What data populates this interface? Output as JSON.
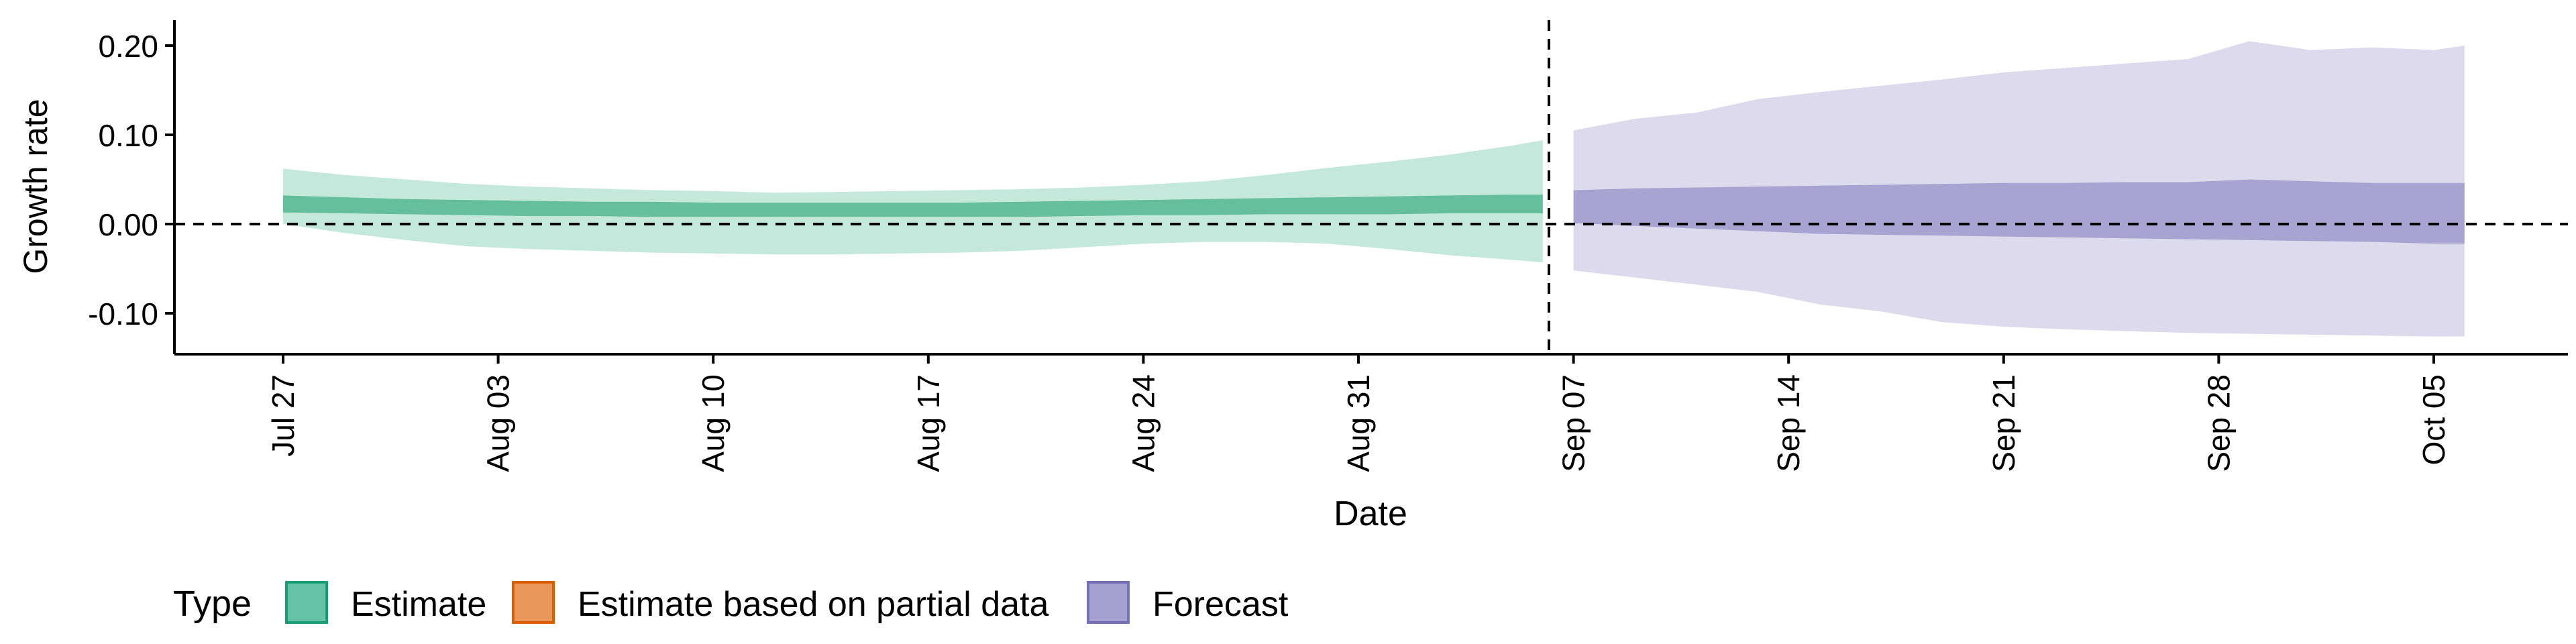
{
  "chart_data": {
    "type": "area",
    "title": "",
    "xlabel": "Date",
    "ylabel": "Growth rate",
    "x_range_days": [
      -3,
      56
    ],
    "ylim": [
      -0.145,
      0.228
    ],
    "y_ticks": [
      {
        "value": 0.2,
        "label": "0.20"
      },
      {
        "value": 0.1,
        "label": "0.10"
      },
      {
        "value": 0.0,
        "label": "0.00"
      },
      {
        "value": -0.1,
        "label": "-0.10"
      }
    ],
    "x_ticks": [
      {
        "day": 0,
        "label": "Jul 27"
      },
      {
        "day": 7,
        "label": "Aug 03"
      },
      {
        "day": 14,
        "label": "Aug 10"
      },
      {
        "day": 21,
        "label": "Aug 17"
      },
      {
        "day": 28,
        "label": "Aug 24"
      },
      {
        "day": 35,
        "label": "Aug 31"
      },
      {
        "day": 42,
        "label": "Sep 07"
      },
      {
        "day": 49,
        "label": "Sep 14"
      },
      {
        "day": 56,
        "label": "Sep 21"
      },
      {
        "day": 63,
        "label": "Sep 28"
      },
      {
        "day": 70,
        "label": "Oct 05"
      }
    ],
    "reference_lines": {
      "horizontal_y": 0.0,
      "vertical_day": 41.2
    },
    "legend": {
      "title": "Type",
      "position": "bottom-left",
      "entries": [
        {
          "label": "Estimate",
          "fill": "#66c2a5",
          "stroke": "#1b9e77"
        },
        {
          "label": "Estimate based on partial data",
          "fill": "#e8965a",
          "stroke": "#d95f02"
        },
        {
          "label": "Forecast",
          "fill": "#a6a0d0",
          "stroke": "#7570b3"
        }
      ]
    },
    "series": [
      {
        "name": "Estimate",
        "outer_fill": "#c5e8dc",
        "inner_fill": "#66bf9c",
        "days": [
          0,
          2,
          4,
          6,
          8,
          10,
          12,
          14,
          16,
          18,
          20,
          22,
          24,
          26,
          28,
          30,
          32,
          34,
          36,
          38,
          40,
          41
        ],
        "outer_low": [
          0.0,
          -0.01,
          -0.018,
          -0.025,
          -0.028,
          -0.03,
          -0.032,
          -0.033,
          -0.034,
          -0.034,
          -0.033,
          -0.032,
          -0.03,
          -0.026,
          -0.022,
          -0.02,
          -0.02,
          -0.022,
          -0.028,
          -0.035,
          -0.04,
          -0.043
        ],
        "outer_high": [
          0.062,
          0.055,
          0.05,
          0.045,
          0.042,
          0.04,
          0.038,
          0.037,
          0.035,
          0.036,
          0.037,
          0.038,
          0.039,
          0.041,
          0.044,
          0.048,
          0.055,
          0.063,
          0.07,
          0.078,
          0.088,
          0.094
        ],
        "inner_low": [
          0.013,
          0.012,
          0.011,
          0.01,
          0.009,
          0.009,
          0.008,
          0.008,
          0.008,
          0.008,
          0.008,
          0.008,
          0.008,
          0.009,
          0.01,
          0.01,
          0.011,
          0.011,
          0.011,
          0.012,
          0.012,
          0.012
        ],
        "inner_high": [
          0.032,
          0.03,
          0.028,
          0.027,
          0.026,
          0.025,
          0.025,
          0.024,
          0.024,
          0.024,
          0.024,
          0.024,
          0.025,
          0.026,
          0.027,
          0.028,
          0.029,
          0.03,
          0.031,
          0.032,
          0.033,
          0.033
        ]
      },
      {
        "name": "Forecast",
        "outer_fill": "#dcdaec",
        "inner_fill": "#a8a3d0",
        "days": [
          42,
          44,
          46,
          48,
          50,
          52,
          54,
          56,
          58,
          60,
          62,
          64,
          66,
          68,
          70,
          71
        ],
        "outer_low": [
          -0.052,
          -0.06,
          -0.068,
          -0.076,
          -0.09,
          -0.098,
          -0.11,
          -0.115,
          -0.118,
          -0.12,
          -0.122,
          -0.123,
          -0.124,
          -0.125,
          -0.126,
          -0.126
        ],
        "outer_high": [
          0.105,
          0.118,
          0.125,
          0.14,
          0.148,
          0.155,
          0.162,
          0.17,
          0.175,
          0.18,
          0.185,
          0.205,
          0.195,
          0.198,
          0.195,
          0.2
        ],
        "inner_low": [
          0.001,
          -0.002,
          -0.005,
          -0.008,
          -0.011,
          -0.012,
          -0.013,
          -0.014,
          -0.015,
          -0.016,
          -0.017,
          -0.018,
          -0.019,
          -0.02,
          -0.022,
          -0.022
        ],
        "inner_high": [
          0.038,
          0.04,
          0.041,
          0.042,
          0.043,
          0.044,
          0.045,
          0.046,
          0.046,
          0.047,
          0.047,
          0.05,
          0.048,
          0.046,
          0.046,
          0.046
        ]
      }
    ]
  }
}
